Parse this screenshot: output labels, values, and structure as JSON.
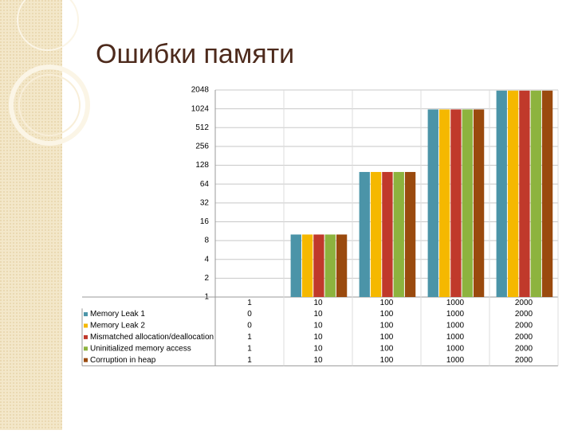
{
  "chart_data": {
    "type": "bar",
    "title": "Ошибки памяти",
    "categories": [
      "1",
      "10",
      "100",
      "1000",
      "2000"
    ],
    "series": [
      {
        "name": "Memory Leak 1",
        "color": "#4b94a8",
        "values": [
          0,
          10,
          100,
          1000,
          2000
        ]
      },
      {
        "name": "Memory Leak 2",
        "color": "#f5b800",
        "values": [
          0,
          10,
          100,
          1000,
          2000
        ]
      },
      {
        "name": "Mismatched allocation/deallocation",
        "color": "#c0392b",
        "values": [
          1,
          10,
          100,
          1000,
          2000
        ]
      },
      {
        "name": "Uninitialized memory access",
        "color": "#8db33e",
        "values": [
          1,
          10,
          100,
          1000,
          2000
        ]
      },
      {
        "name": "Corruption in heap",
        "color": "#9a4a0e",
        "values": [
          1,
          10,
          100,
          1000,
          2000
        ]
      }
    ],
    "log_scale": true,
    "log_base": 2,
    "ylim": [
      1,
      2048
    ],
    "yticks": [
      1,
      2,
      4,
      8,
      16,
      32,
      64,
      128,
      256,
      512,
      1024,
      2048
    ],
    "grid": true,
    "legend": "table"
  }
}
